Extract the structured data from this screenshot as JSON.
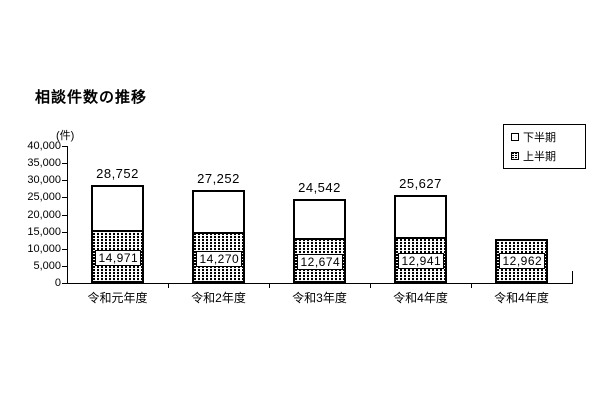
{
  "title": "相談件数の推移",
  "y_axis": {
    "unit": "(件)",
    "tick_labels": [
      "40,000",
      "35,000",
      "30,000",
      "25,000",
      "20,000",
      "15,000",
      "10,000",
      "5,000",
      "0"
    ],
    "max": 40000,
    "step": 5000
  },
  "legend": {
    "items": [
      {
        "label": "下半期",
        "swatch": "white"
      },
      {
        "label": "上半期",
        "swatch": "dotted"
      }
    ]
  },
  "chart_data": {
    "type": "bar",
    "stacked": true,
    "title": "相談件数の推移",
    "ylabel": "(件)",
    "ylim": [
      0,
      40000
    ],
    "ytick_step": 5000,
    "grid": false,
    "legend_position": "top-right",
    "categories": [
      "令和元年度",
      "令和2年度",
      "令和3年度",
      "令和4年度",
      "令和4年度"
    ],
    "series": [
      {
        "name": "上半期",
        "pattern": "dotted",
        "values": [
          14971,
          14270,
          12674,
          12941,
          12962
        ]
      },
      {
        "name": "下半期",
        "pattern": "white",
        "values": [
          13781,
          12982,
          11868,
          12686,
          0
        ]
      }
    ],
    "totals_shown": [
      28752,
      27252,
      24542,
      25627,
      null
    ],
    "total_labels_shown": [
      "28,752",
      "27,252",
      "24,542",
      "25,627",
      ""
    ],
    "segment_labels_shown": [
      "14,971",
      "14,270",
      "12,674",
      "12,941",
      "12,962"
    ]
  }
}
